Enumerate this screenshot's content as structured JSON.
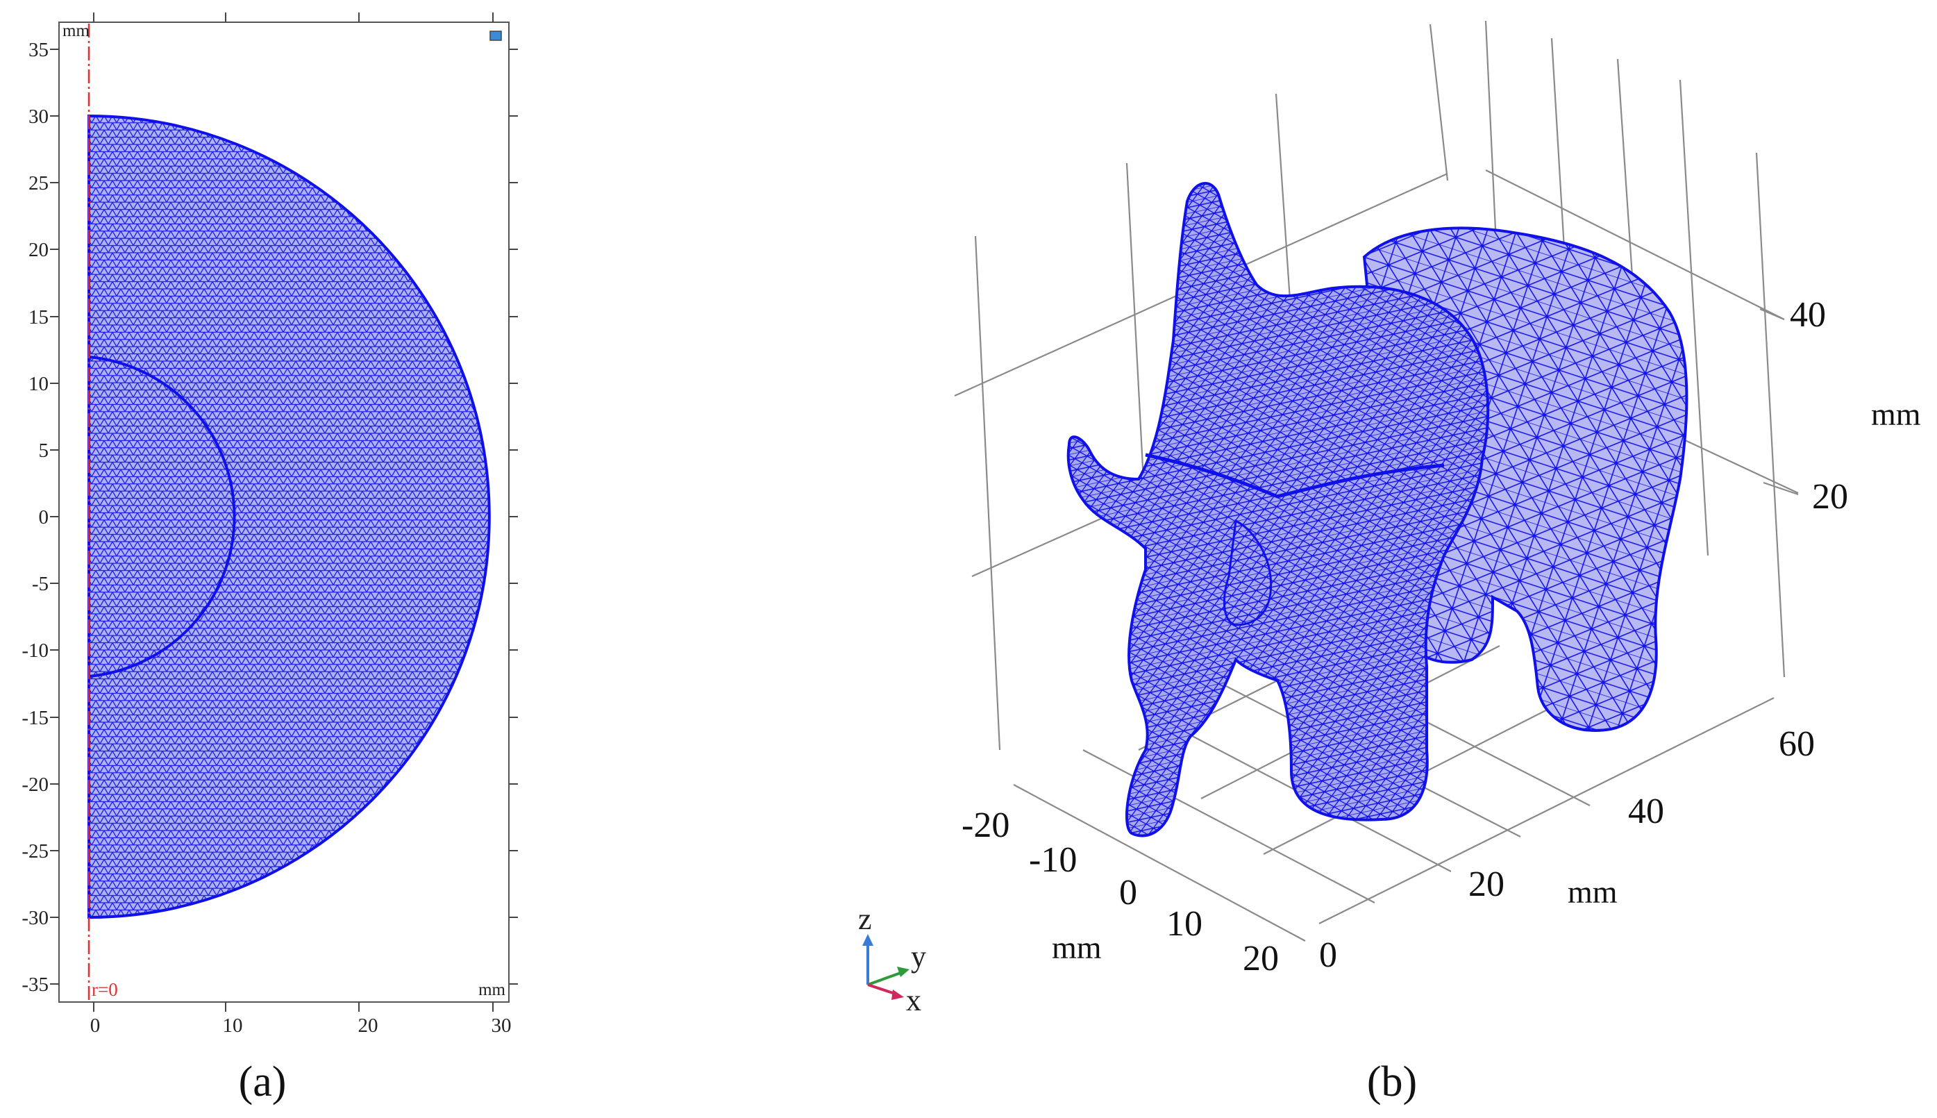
{
  "panel_a": {
    "caption": "(a)",
    "unit_top": "mm",
    "unit_bottom_right": "mm",
    "axis_label": "r=0",
    "y_ticks": [
      "35",
      "30",
      "25",
      "20",
      "15",
      "10",
      "5",
      "0",
      "-5",
      "-10",
      "-15",
      "-20",
      "-25",
      "-30",
      "-35"
    ],
    "x_ticks": [
      "0",
      "10",
      "20",
      "30"
    ],
    "mesh_color": "#1010e8",
    "axis_line_color": "#e53030"
  },
  "panel_b": {
    "caption": "(b)",
    "z_ticks": [
      "40",
      "20"
    ],
    "z_unit": "mm",
    "y_ticks": [
      "60",
      "40",
      "20",
      "0"
    ],
    "y_unit": "mm",
    "x_ticks": [
      "-20",
      "-10",
      "0",
      "10",
      "20"
    ],
    "x_unit": "mm",
    "triad": {
      "z": "z",
      "y": "y",
      "x": "x"
    },
    "mesh_color": "#1010e8",
    "fill_color": "#b4b4f0"
  }
}
